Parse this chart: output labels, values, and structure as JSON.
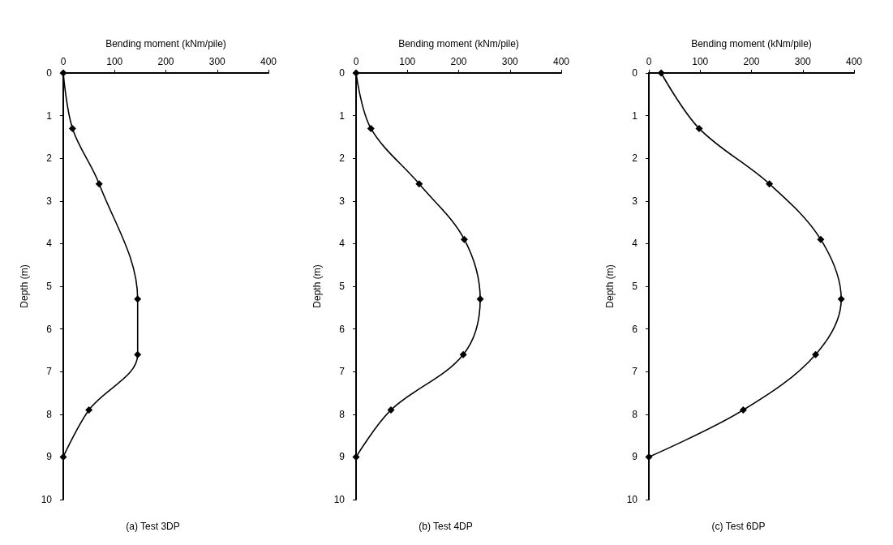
{
  "chart_data": [
    {
      "type": "line",
      "title": "(a) Test 3DP",
      "xlabel": "Bending moment (kNm/pile)",
      "ylabel": "Depth (m)",
      "xlim": [
        0,
        400
      ],
      "xticks": [
        0,
        100,
        200,
        300,
        400
      ],
      "ylim": [
        10,
        0
      ],
      "yticks": [
        0,
        1,
        2,
        3,
        4,
        5,
        6,
        7,
        8,
        9,
        10
      ],
      "grid": false,
      "marker": "diamond",
      "line_style": "solid",
      "series": [
        {
          "color": "#000000",
          "x": [
            0,
            18,
            70,
            145,
            145,
            50,
            0
          ],
          "values": [
            0,
            1.3,
            2.6,
            5.3,
            6.6,
            7.9,
            9
          ]
        }
      ]
    },
    {
      "type": "line",
      "title": "(b) Test 4DP",
      "xlabel": "Bending moment (kNm/pile)",
      "ylabel": "Depth (m)",
      "xlim": [
        0,
        400
      ],
      "xticks": [
        0,
        100,
        200,
        300,
        400
      ],
      "ylim": [
        10,
        0
      ],
      "yticks": [
        0,
        1,
        2,
        3,
        4,
        5,
        6,
        7,
        8,
        9,
        10
      ],
      "grid": false,
      "marker": "diamond",
      "line_style": "solid",
      "series": [
        {
          "color": "#000000",
          "x": [
            0,
            29,
            123,
            211,
            242,
            209,
            68,
            0
          ],
          "values": [
            0,
            1.3,
            2.6,
            3.9,
            5.3,
            6.6,
            7.9,
            9
          ]
        }
      ]
    },
    {
      "type": "line",
      "title": "(c) Test 6DP",
      "xlabel": "Bending moment (kNm/pile)",
      "ylabel": "Depth (m)",
      "xlim": [
        0,
        400
      ],
      "xticks": [
        0,
        100,
        200,
        300,
        400
      ],
      "ylim": [
        10,
        0
      ],
      "yticks": [
        0,
        1,
        2,
        3,
        4,
        5,
        6,
        7,
        8,
        9,
        10
      ],
      "grid": false,
      "marker": "diamond",
      "line_style": "solid",
      "series": [
        {
          "color": "#000000",
          "x": [
            24,
            98,
            235,
            335,
            375,
            325,
            184,
            0
          ],
          "values": [
            0,
            1.3,
            2.6,
            3.9,
            5.3,
            6.6,
            7.9,
            9
          ]
        }
      ]
    }
  ]
}
